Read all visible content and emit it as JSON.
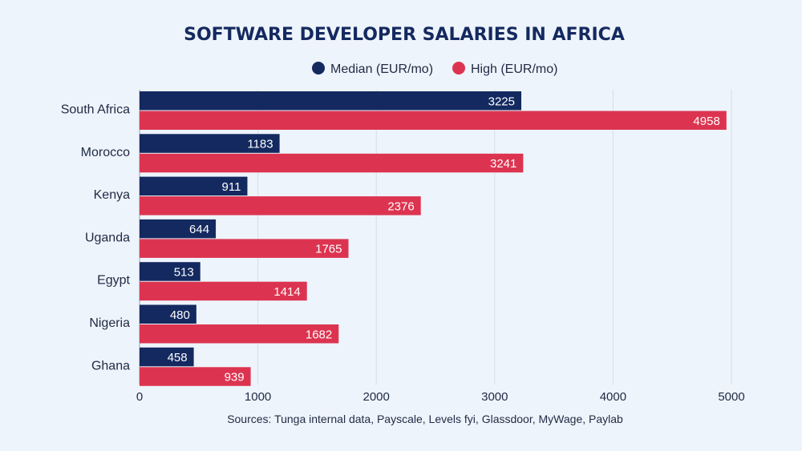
{
  "chart_data": {
    "type": "bar",
    "orientation": "horizontal",
    "title": "SOFTWARE DEVELOPER SALARIES IN AFRICA",
    "categories": [
      "South Africa",
      "Morocco",
      "Kenya",
      "Uganda",
      "Egypt",
      "Nigeria",
      "Ghana"
    ],
    "series": [
      {
        "name": "Median (EUR/mo)",
        "values": [
          3225,
          1183,
          911,
          644,
          513,
          480,
          458
        ]
      },
      {
        "name": "High (EUR/mo)",
        "values": [
          4958,
          3241,
          2376,
          1765,
          1414,
          1682,
          939
        ]
      }
    ],
    "xlim": [
      0,
      5000
    ],
    "xticks": [
      0,
      1000,
      2000,
      3000,
      4000,
      5000
    ],
    "xticklabels": [
      "0",
      "1000",
      "2000",
      "3000",
      "4000",
      "5000"
    ],
    "grid": true,
    "legend_position": "top-center",
    "data_labels": "inside-end",
    "colors": {
      "Median (EUR/mo)": "#14295f",
      "High (EUR/mo)": "#dc3450"
    },
    "source_note": "Sources: Tunga internal data, Payscale, Levels fyi, Glassdoor, MyWage, Paylab"
  }
}
